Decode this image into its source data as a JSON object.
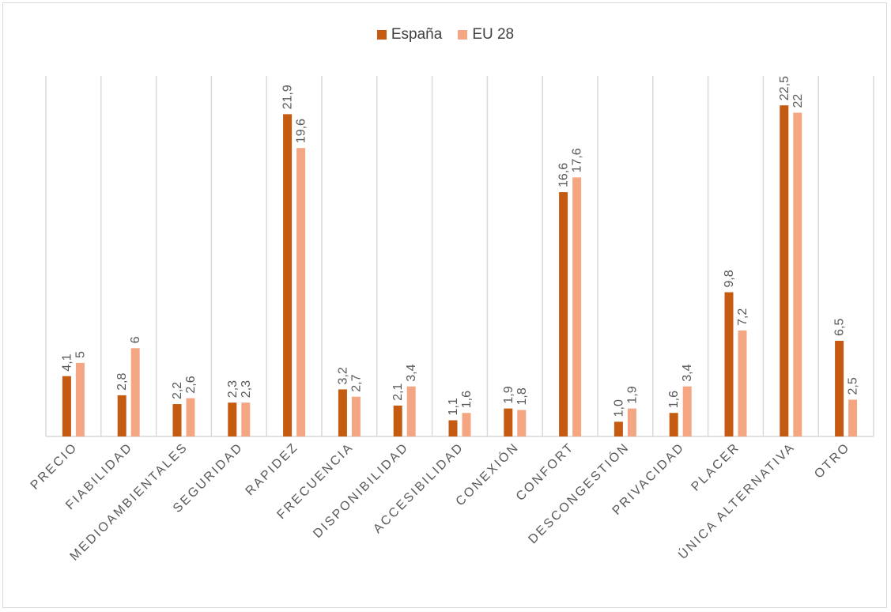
{
  "chart_data": {
    "type": "bar",
    "categories": [
      "PRECIO",
      "FIABILIDAD",
      "MEDIOAMBIENTALES",
      "SEGURIDAD",
      "RAPIDEZ",
      "FRECUENCIA",
      "DISPONIBILIDAD",
      "ACCESIBILIDAD",
      "CONEXIÓN",
      "CONFORT",
      "DESCONGESTIÓN",
      "PRIVACIDAD",
      "PLACER",
      "ÚNICA ALTERNATIVA",
      "OTRO"
    ],
    "series": [
      {
        "name": "España",
        "color": "#C55A11",
        "values": [
          4.1,
          2.8,
          2.2,
          2.3,
          21.9,
          3.2,
          2.1,
          1.1,
          1.9,
          16.6,
          1.0,
          1.6,
          9.8,
          22.5,
          6.5
        ],
        "labels": [
          "4,1",
          "2,8",
          "2,2",
          "2,3",
          "21,9",
          "3,2",
          "2,1",
          "1,1",
          "1,9",
          "16,6",
          "1,0",
          "1,6",
          "9,8",
          "22,5",
          "6,5"
        ]
      },
      {
        "name": "EU 28",
        "color": "#F4A582",
        "values": [
          5,
          6,
          2.6,
          2.3,
          19.6,
          2.7,
          3.4,
          1.6,
          1.8,
          17.6,
          1.9,
          3.4,
          7.2,
          22,
          2.5
        ],
        "labels": [
          "5",
          "6",
          "2,6",
          "2,3",
          "19,6",
          "2,7",
          "3,4",
          "1,6",
          "1,8",
          "17,6",
          "1,9",
          "3,4",
          "7,2",
          "22",
          "2,5"
        ]
      }
    ],
    "ylim": [
      0,
      24.5
    ],
    "grid": "vertical",
    "legend": "top-center",
    "title": "",
    "xlabel": "",
    "ylabel": ""
  }
}
